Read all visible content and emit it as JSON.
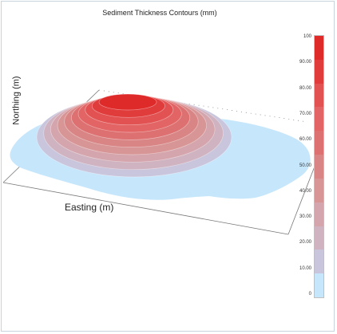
{
  "chart_data": {
    "type": "contour",
    "title": "Sediment Thickness Contours (mm)",
    "xlabel": "Easting (m)",
    "ylabel": "Northing (m)",
    "colorbar": {
      "range": [
        0,
        100
      ],
      "tick_labels": [
        "100",
        "90.00",
        "80.00",
        "70.00",
        "60.00",
        "50.00",
        "40.00",
        "30.00",
        "20.00",
        "10.00",
        "0"
      ],
      "band_colors": [
        "#df2a2a",
        "#e03c3c",
        "#e25252",
        "#e36464",
        "#dd7070",
        "#d98585",
        "#d89595",
        "#d5a5ad",
        "#d0b3c0",
        "#c8c5dc",
        "#c6e6fb"
      ]
    },
    "contour_levels": [
      10,
      20,
      30,
      40,
      50,
      60,
      70,
      80,
      90,
      100
    ],
    "grid": false
  }
}
